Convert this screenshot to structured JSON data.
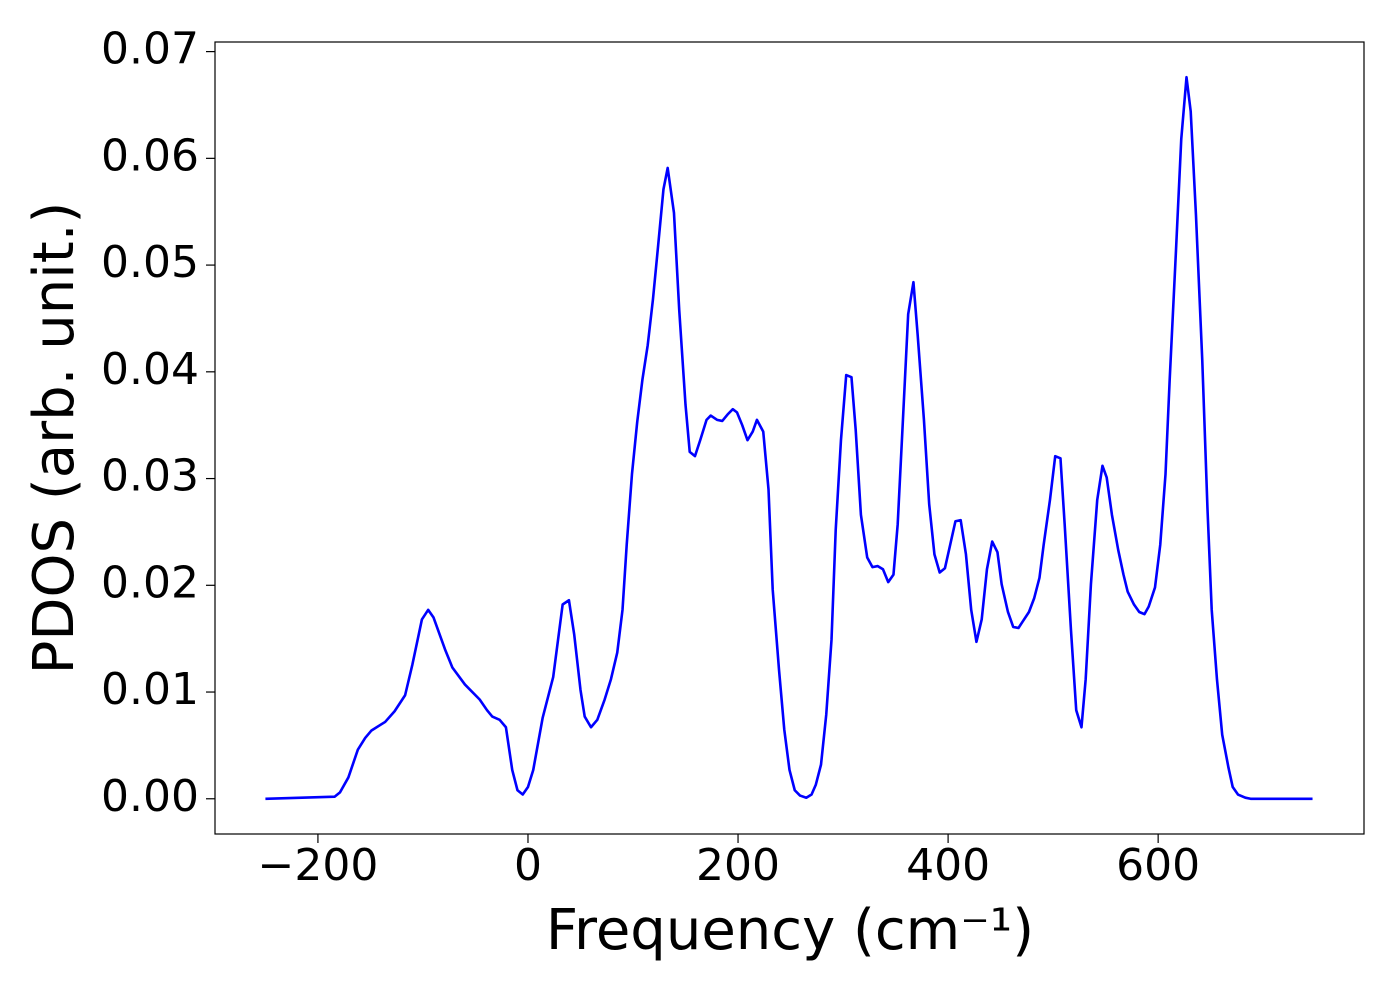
{
  "chart_data": {
    "type": "line",
    "xlabel": "Frequency (cm⁻¹)",
    "ylabel": "PDOS (arb. unit.)",
    "xlim": [
      -298,
      796
    ],
    "ylim": [
      -0.0033,
      0.0709
    ],
    "xticks": [
      {
        "value": -200,
        "label": "−200"
      },
      0,
      200,
      400,
      600
    ],
    "yticks": [
      {
        "value": 0,
        "label": "0.00"
      },
      0.01,
      0.02,
      0.03,
      0.04,
      0.05,
      0.06,
      0.07
    ],
    "x": [
      -250,
      -184,
      -179,
      -171,
      -162,
      -155,
      -149,
      -136,
      -127,
      -117,
      -110,
      -101,
      -95,
      -90,
      -79,
      -72,
      -60,
      -46,
      -39,
      -34,
      -27,
      -21,
      -15,
      -10,
      -5,
      0,
      5,
      14,
      24,
      33,
      39,
      44,
      50,
      54,
      60,
      66,
      73,
      79,
      85,
      90,
      94,
      99,
      104,
      109,
      114,
      119,
      124,
      129,
      133,
      139,
      144,
      150,
      154,
      159,
      164,
      170,
      174,
      180,
      185,
      190,
      195,
      199,
      204,
      209,
      214,
      218,
      224,
      229,
      233,
      239,
      244,
      249,
      254,
      259,
      265,
      270,
      274,
      279,
      284,
      289,
      293,
      298,
      303,
      308,
      312,
      317,
      323,
      328,
      333,
      338,
      343,
      348,
      352,
      357,
      362,
      367,
      371,
      377,
      382,
      387,
      392,
      397,
      402,
      407,
      412,
      417,
      422,
      427,
      432,
      437,
      442,
      447,
      451,
      457,
      462,
      467,
      471,
      477,
      482,
      487,
      491,
      497,
      502,
      507,
      511,
      517,
      522,
      527,
      531,
      536,
      542,
      547,
      551,
      556,
      562,
      567,
      571,
      577,
      582,
      587,
      591,
      597,
      602,
      607,
      611,
      617,
      622,
      627,
      631,
      636,
      642,
      647,
      651,
      656,
      661,
      667,
      671,
      676,
      683,
      688,
      747
    ],
    "series": [
      {
        "name": "PDOS",
        "color": "#0000ff",
        "values": [
          0,
          0.0002,
          0.0006,
          0.002,
          0.0046,
          0.0057,
          0.0064,
          0.0072,
          0.0082,
          0.0097,
          0.0126,
          0.0168,
          0.0177,
          0.017,
          0.014,
          0.0123,
          0.0107,
          0.0093,
          0.0083,
          0.0077,
          0.0074,
          0.0067,
          0.0027,
          0.0008,
          0.0004,
          0.0011,
          0.0027,
          0.0076,
          0.0114,
          0.0182,
          0.0186,
          0.0154,
          0.0102,
          0.0077,
          0.0067,
          0.0074,
          0.0093,
          0.0112,
          0.0137,
          0.0177,
          0.0238,
          0.0304,
          0.0353,
          0.0393,
          0.0425,
          0.0468,
          0.0519,
          0.0571,
          0.0591,
          0.0549,
          0.0458,
          0.0369,
          0.0325,
          0.0321,
          0.0336,
          0.0355,
          0.0359,
          0.0355,
          0.0354,
          0.036,
          0.0365,
          0.0362,
          0.035,
          0.0336,
          0.0344,
          0.0355,
          0.0344,
          0.029,
          0.0196,
          0.0121,
          0.0065,
          0.0027,
          0.0008,
          0.0003,
          0.0001,
          0.0004,
          0.0013,
          0.0032,
          0.0079,
          0.0149,
          0.0252,
          0.0336,
          0.0397,
          0.0395,
          0.0346,
          0.0266,
          0.0226,
          0.0217,
          0.0218,
          0.0215,
          0.0203,
          0.021,
          0.0257,
          0.0355,
          0.0454,
          0.0484,
          0.0435,
          0.0355,
          0.0276,
          0.0229,
          0.0212,
          0.0216,
          0.0238,
          0.026,
          0.0261,
          0.0229,
          0.0177,
          0.0147,
          0.0168,
          0.0215,
          0.0241,
          0.0231,
          0.0201,
          0.0175,
          0.0161,
          0.016,
          0.0166,
          0.0175,
          0.0188,
          0.0207,
          0.0238,
          0.028,
          0.0321,
          0.0319,
          0.0257,
          0.0158,
          0.0083,
          0.0067,
          0.0112,
          0.0201,
          0.028,
          0.0312,
          0.0301,
          0.0266,
          0.0233,
          0.021,
          0.0194,
          0.0182,
          0.0175,
          0.0173,
          0.018,
          0.0198,
          0.0238,
          0.0304,
          0.0393,
          0.0514,
          0.0618,
          0.0676,
          0.0644,
          0.0547,
          0.0411,
          0.0271,
          0.0177,
          0.0112,
          0.006,
          0.0029,
          0.0011,
          0.0004,
          0.0001,
          0,
          0
        ]
      }
    ]
  }
}
